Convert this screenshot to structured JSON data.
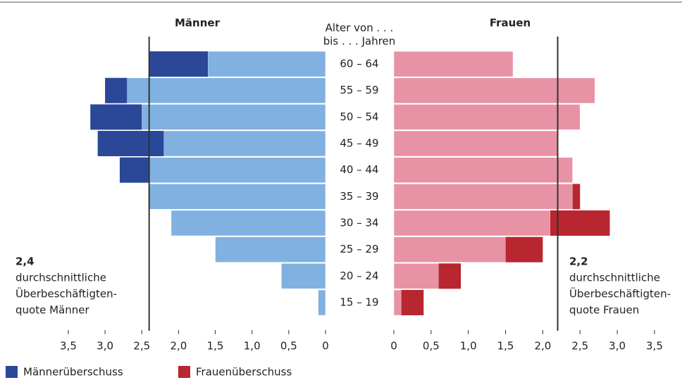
{
  "chart_data": {
    "type": "pyramid",
    "categories": [
      "60 – 64",
      "55 – 59",
      "50 – 54",
      "45 – 49",
      "40 – 44",
      "35 – 39",
      "30 – 34",
      "25 – 29",
      "20 – 24",
      "15 – 19"
    ],
    "category_header": [
      "Alter von . . .",
      "bis . . . Jahren"
    ],
    "panels": [
      {
        "title": "Männer",
        "side": "left",
        "base": {
          "color": "#80b1e0",
          "values": [
            1.6,
            2.7,
            2.5,
            2.2,
            2.4,
            2.4,
            2.1,
            1.5,
            0.6,
            0.1
          ]
        },
        "surplus": {
          "name": "Männerüberschuss",
          "color": "#2a4798",
          "values": [
            0.8,
            0.3,
            0.7,
            0.9,
            0.4,
            0,
            0,
            0,
            0,
            0
          ]
        },
        "xlim": [
          0,
          3.5
        ],
        "xticks": [
          0,
          {
            "value": 0.5,
            "label": "0,5"
          },
          {
            "value": 1,
            "label": "1,0"
          },
          {
            "value": 1.5,
            "label": "1,5"
          },
          {
            "value": 2,
            "label": "2,0"
          },
          {
            "value": 2.5,
            "label": "2,5"
          },
          {
            "value": 3,
            "label": "3,0"
          },
          {
            "value": 3.5,
            "label": "3,5"
          }
        ],
        "reference": {
          "value": 2.4,
          "label": "2,4",
          "text": [
            "durchschnittliche",
            "Überbeschäftigten-",
            "quote Männer"
          ]
        }
      },
      {
        "title": "Frauen",
        "side": "right",
        "base": {
          "color": "#e892a5",
          "values": [
            1.6,
            2.7,
            2.5,
            2.2,
            2.4,
            2.4,
            2.1,
            1.5,
            0.6,
            0.1
          ]
        },
        "surplus": {
          "name": "Frauenüberschuss",
          "color": "#b8262f",
          "values": [
            0,
            0,
            0,
            0,
            0,
            0.1,
            0.8,
            0.5,
            0.3,
            0.3
          ]
        },
        "xlim": [
          0,
          3.5
        ],
        "xticks": [
          0,
          {
            "value": 0.5,
            "label": "0,5"
          },
          {
            "value": 1,
            "label": "1,0"
          },
          {
            "value": 1.5,
            "label": "1,5"
          },
          {
            "value": 2,
            "label": "2,0"
          },
          {
            "value": 2.5,
            "label": "2,5"
          },
          {
            "value": 3,
            "label": "3,0"
          },
          {
            "value": 3.5,
            "label": "3,5"
          }
        ],
        "reference": {
          "value": 2.2,
          "label": "2,2",
          "text": [
            "durchschnittliche",
            "Überbeschäftigten-",
            "quote Frauen"
          ]
        }
      }
    ]
  }
}
